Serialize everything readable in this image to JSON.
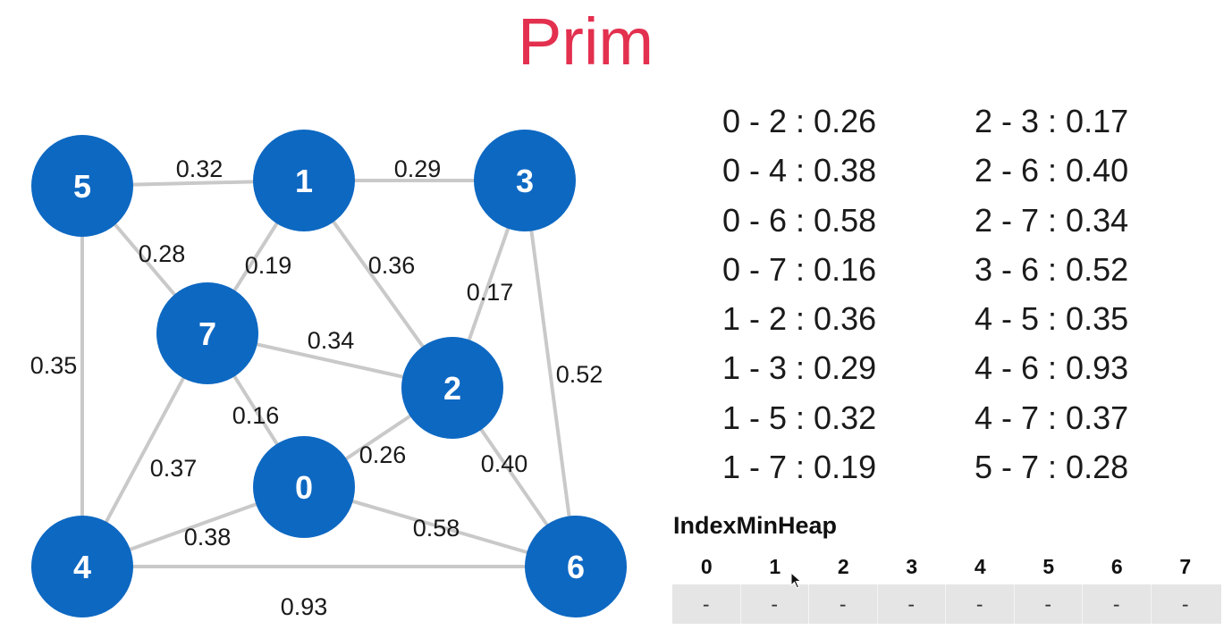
{
  "title": "Prim",
  "graph": {
    "nodes": [
      {
        "id": "0",
        "label": "0"
      },
      {
        "id": "1",
        "label": "1"
      },
      {
        "id": "2",
        "label": "2"
      },
      {
        "id": "3",
        "label": "3"
      },
      {
        "id": "4",
        "label": "4"
      },
      {
        "id": "5",
        "label": "5"
      },
      {
        "id": "6",
        "label": "6"
      },
      {
        "id": "7",
        "label": "7"
      }
    ],
    "edges": [
      {
        "from": "5",
        "to": "1",
        "weight": "0.32"
      },
      {
        "from": "1",
        "to": "3",
        "weight": "0.29"
      },
      {
        "from": "5",
        "to": "7",
        "weight": "0.28"
      },
      {
        "from": "1",
        "to": "7",
        "weight": "0.19"
      },
      {
        "from": "1",
        "to": "2",
        "weight": "0.36"
      },
      {
        "from": "3",
        "to": "2",
        "weight": "0.17"
      },
      {
        "from": "5",
        "to": "4",
        "weight": "0.35"
      },
      {
        "from": "7",
        "to": "2",
        "weight": "0.34"
      },
      {
        "from": "3",
        "to": "6",
        "weight": "0.52"
      },
      {
        "from": "7",
        "to": "0",
        "weight": "0.16"
      },
      {
        "from": "0",
        "to": "2",
        "weight": "0.26"
      },
      {
        "from": "2",
        "to": "6",
        "weight": "0.40"
      },
      {
        "from": "7",
        "to": "4",
        "weight": "0.37"
      },
      {
        "from": "0",
        "to": "4",
        "weight": "0.38"
      },
      {
        "from": "0",
        "to": "6",
        "weight": "0.58"
      },
      {
        "from": "4",
        "to": "6",
        "weight": "0.93"
      }
    ]
  },
  "edge_list": {
    "left": [
      "0 - 2 : 0.26",
      "0 - 4 : 0.38",
      "0 - 6 : 0.58",
      "0 - 7 : 0.16",
      "1 - 2 : 0.36",
      "1 - 3 : 0.29",
      "1 - 5 : 0.32",
      "1 - 7 : 0.19"
    ],
    "right": [
      "2 - 3 : 0.17",
      "2 - 6 : 0.40",
      "2 - 7 : 0.34",
      "3 - 6 : 0.52",
      "4 - 5 : 0.35",
      "4 - 6 : 0.93",
      "4 - 7 : 0.37",
      "5 - 7 : 0.28"
    ]
  },
  "heap": {
    "title": "IndexMinHeap",
    "indices": [
      "0",
      "1",
      "2",
      "3",
      "4",
      "5",
      "6",
      "7"
    ],
    "values": [
      "-",
      "-",
      "-",
      "-",
      "-",
      "-",
      "-",
      "-"
    ]
  },
  "colors": {
    "title": "#e3304f",
    "node": "#0d68c2",
    "edge": "#c9c9c9",
    "heap_cell": "#e5e5e5"
  },
  "icons": {
    "cursor": "mouse-pointer-icon"
  }
}
